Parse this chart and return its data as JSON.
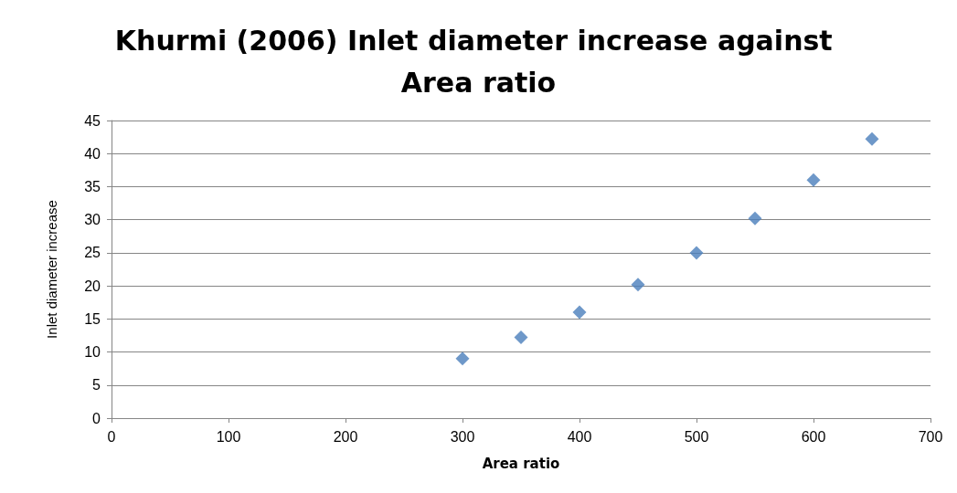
{
  "chart_data": {
    "type": "scatter",
    "title": "Khurmi (2006) Inlet diameter increase against Area ratio",
    "xlabel": "Area ratio",
    "ylabel": "Inlet diameter increase",
    "x": [
      300,
      350,
      400,
      450,
      500,
      550,
      600,
      650
    ],
    "series": [
      {
        "color": "#4a7ebb",
        "values": [
          9,
          12.2,
          16,
          20.2,
          25,
          30.2,
          36,
          42.2
        ]
      }
    ],
    "xlim": [
      0,
      700
    ],
    "xticks": [
      0,
      100,
      200,
      300,
      400,
      500,
      600,
      700
    ],
    "ylim": [
      0,
      45
    ],
    "yticks": [
      0,
      5,
      10,
      15,
      20,
      25,
      30,
      35,
      40,
      45
    ],
    "grid": "y",
    "marker": "diamond"
  }
}
